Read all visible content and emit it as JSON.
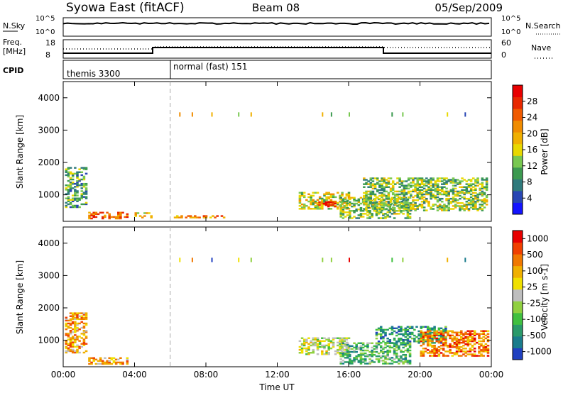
{
  "header": {
    "title": "Syowa East (fitACF)",
    "beam": "Beam 08",
    "date": "05/Sep/2009"
  },
  "panels": {
    "nsky_label": "N.Sky",
    "nsearch_label": "N.Search",
    "freq_label_1": "Freq.",
    "freq_label_2": "[MHz]",
    "nave_label": "Nave",
    "cpid_label": "CPID",
    "nsky_ticks": [
      "10^5",
      "10^0"
    ],
    "nsearch_ticks": [
      "10^5",
      "10^0"
    ],
    "freq_ticks": [
      "18",
      "8"
    ],
    "nave_ticks": [
      "60",
      "0"
    ],
    "cpid_entries": [
      {
        "start_hour": 0,
        "label": "themis 3300"
      },
      {
        "start_hour": 6,
        "label": "normal (fast) 151"
      }
    ]
  },
  "chart_data": [
    {
      "type": "heatmap",
      "title": "Power",
      "xlabel": "",
      "ylabel": "Slant Range [km]",
      "xlim": [
        0,
        24
      ],
      "ylim": [
        180,
        4500
      ],
      "x_ticks": [
        "00:00",
        "04:00",
        "08:00",
        "12:00",
        "16:00",
        "20:00",
        "00:00"
      ],
      "y_ticks": [
        1000,
        2000,
        3000,
        4000
      ],
      "colorbar": {
        "label": "Power [dB]",
        "ticks": [
          "4",
          "8",
          "12",
          "16",
          "20",
          "24",
          "28"
        ],
        "range": [
          0,
          30
        ],
        "colors": [
          "#1414ff",
          "#2846b4",
          "#2f7a7c",
          "#3c9a50",
          "#78c850",
          "#e8d800",
          "#f0b000",
          "#f08c00",
          "#f05a00",
          "#e82800",
          "#e80000"
        ]
      },
      "regions": [
        {
          "t": [
            0.1,
            1.3
          ],
          "r": [
            600,
            1850
          ],
          "level": 3
        },
        {
          "t": [
            1.4,
            3.6
          ],
          "r": [
            250,
            450
          ],
          "level": 8
        },
        {
          "t": [
            4.0,
            5.0
          ],
          "r": [
            280,
            440
          ],
          "level": 6
        },
        {
          "t": [
            6.2,
            9.0
          ],
          "r": [
            280,
            340
          ],
          "level": 7
        },
        {
          "t": [
            13.2,
            16.0
          ],
          "r": [
            550,
            1050
          ],
          "level": 5
        },
        {
          "t": [
            14.3,
            15.2
          ],
          "r": [
            620,
            780
          ],
          "level": 9
        },
        {
          "t": [
            15.5,
            19.5
          ],
          "r": [
            260,
            900
          ],
          "level": 4
        },
        {
          "t": [
            16.8,
            23.8
          ],
          "r": [
            500,
            1500
          ],
          "level": 4
        }
      ]
    },
    {
      "type": "heatmap",
      "title": "Velocity",
      "xlabel": "Time UT",
      "ylabel": "Slant Range [km]",
      "xlim": [
        0,
        24
      ],
      "ylim": [
        180,
        4500
      ],
      "x_ticks": [
        "00:00",
        "04:00",
        "08:00",
        "12:00",
        "16:00",
        "20:00",
        "00:00"
      ],
      "y_ticks": [
        1000,
        2000,
        3000,
        4000
      ],
      "colorbar": {
        "label": "Velocity [m s-1]",
        "ticks": [
          "1000",
          "500",
          "100",
          "25",
          "-25",
          "-100",
          "-500",
          "-1000"
        ],
        "range": [
          -1200,
          1200
        ],
        "colors": [
          "#2040c0",
          "#1a7c8c",
          "#2a9a6a",
          "#40c040",
          "#90d040",
          "#bebebe",
          "#f0e000",
          "#f0b000",
          "#f07800",
          "#f04000",
          "#e80000"
        ]
      },
      "regions": [
        {
          "t": [
            0.1,
            1.3
          ],
          "r": [
            600,
            1850
          ],
          "level": 7
        },
        {
          "t": [
            1.4,
            3.6
          ],
          "r": [
            250,
            450
          ],
          "level": 7
        },
        {
          "t": [
            13.2,
            16.0
          ],
          "r": [
            550,
            1050
          ],
          "level": 5
        },
        {
          "t": [
            15.5,
            19.5
          ],
          "r": [
            260,
            900
          ],
          "level": 3
        },
        {
          "t": [
            17.5,
            21.5
          ],
          "r": [
            900,
            1400
          ],
          "level": 2
        },
        {
          "t": [
            20.0,
            23.8
          ],
          "r": [
            500,
            1300
          ],
          "level": 8
        }
      ]
    }
  ]
}
